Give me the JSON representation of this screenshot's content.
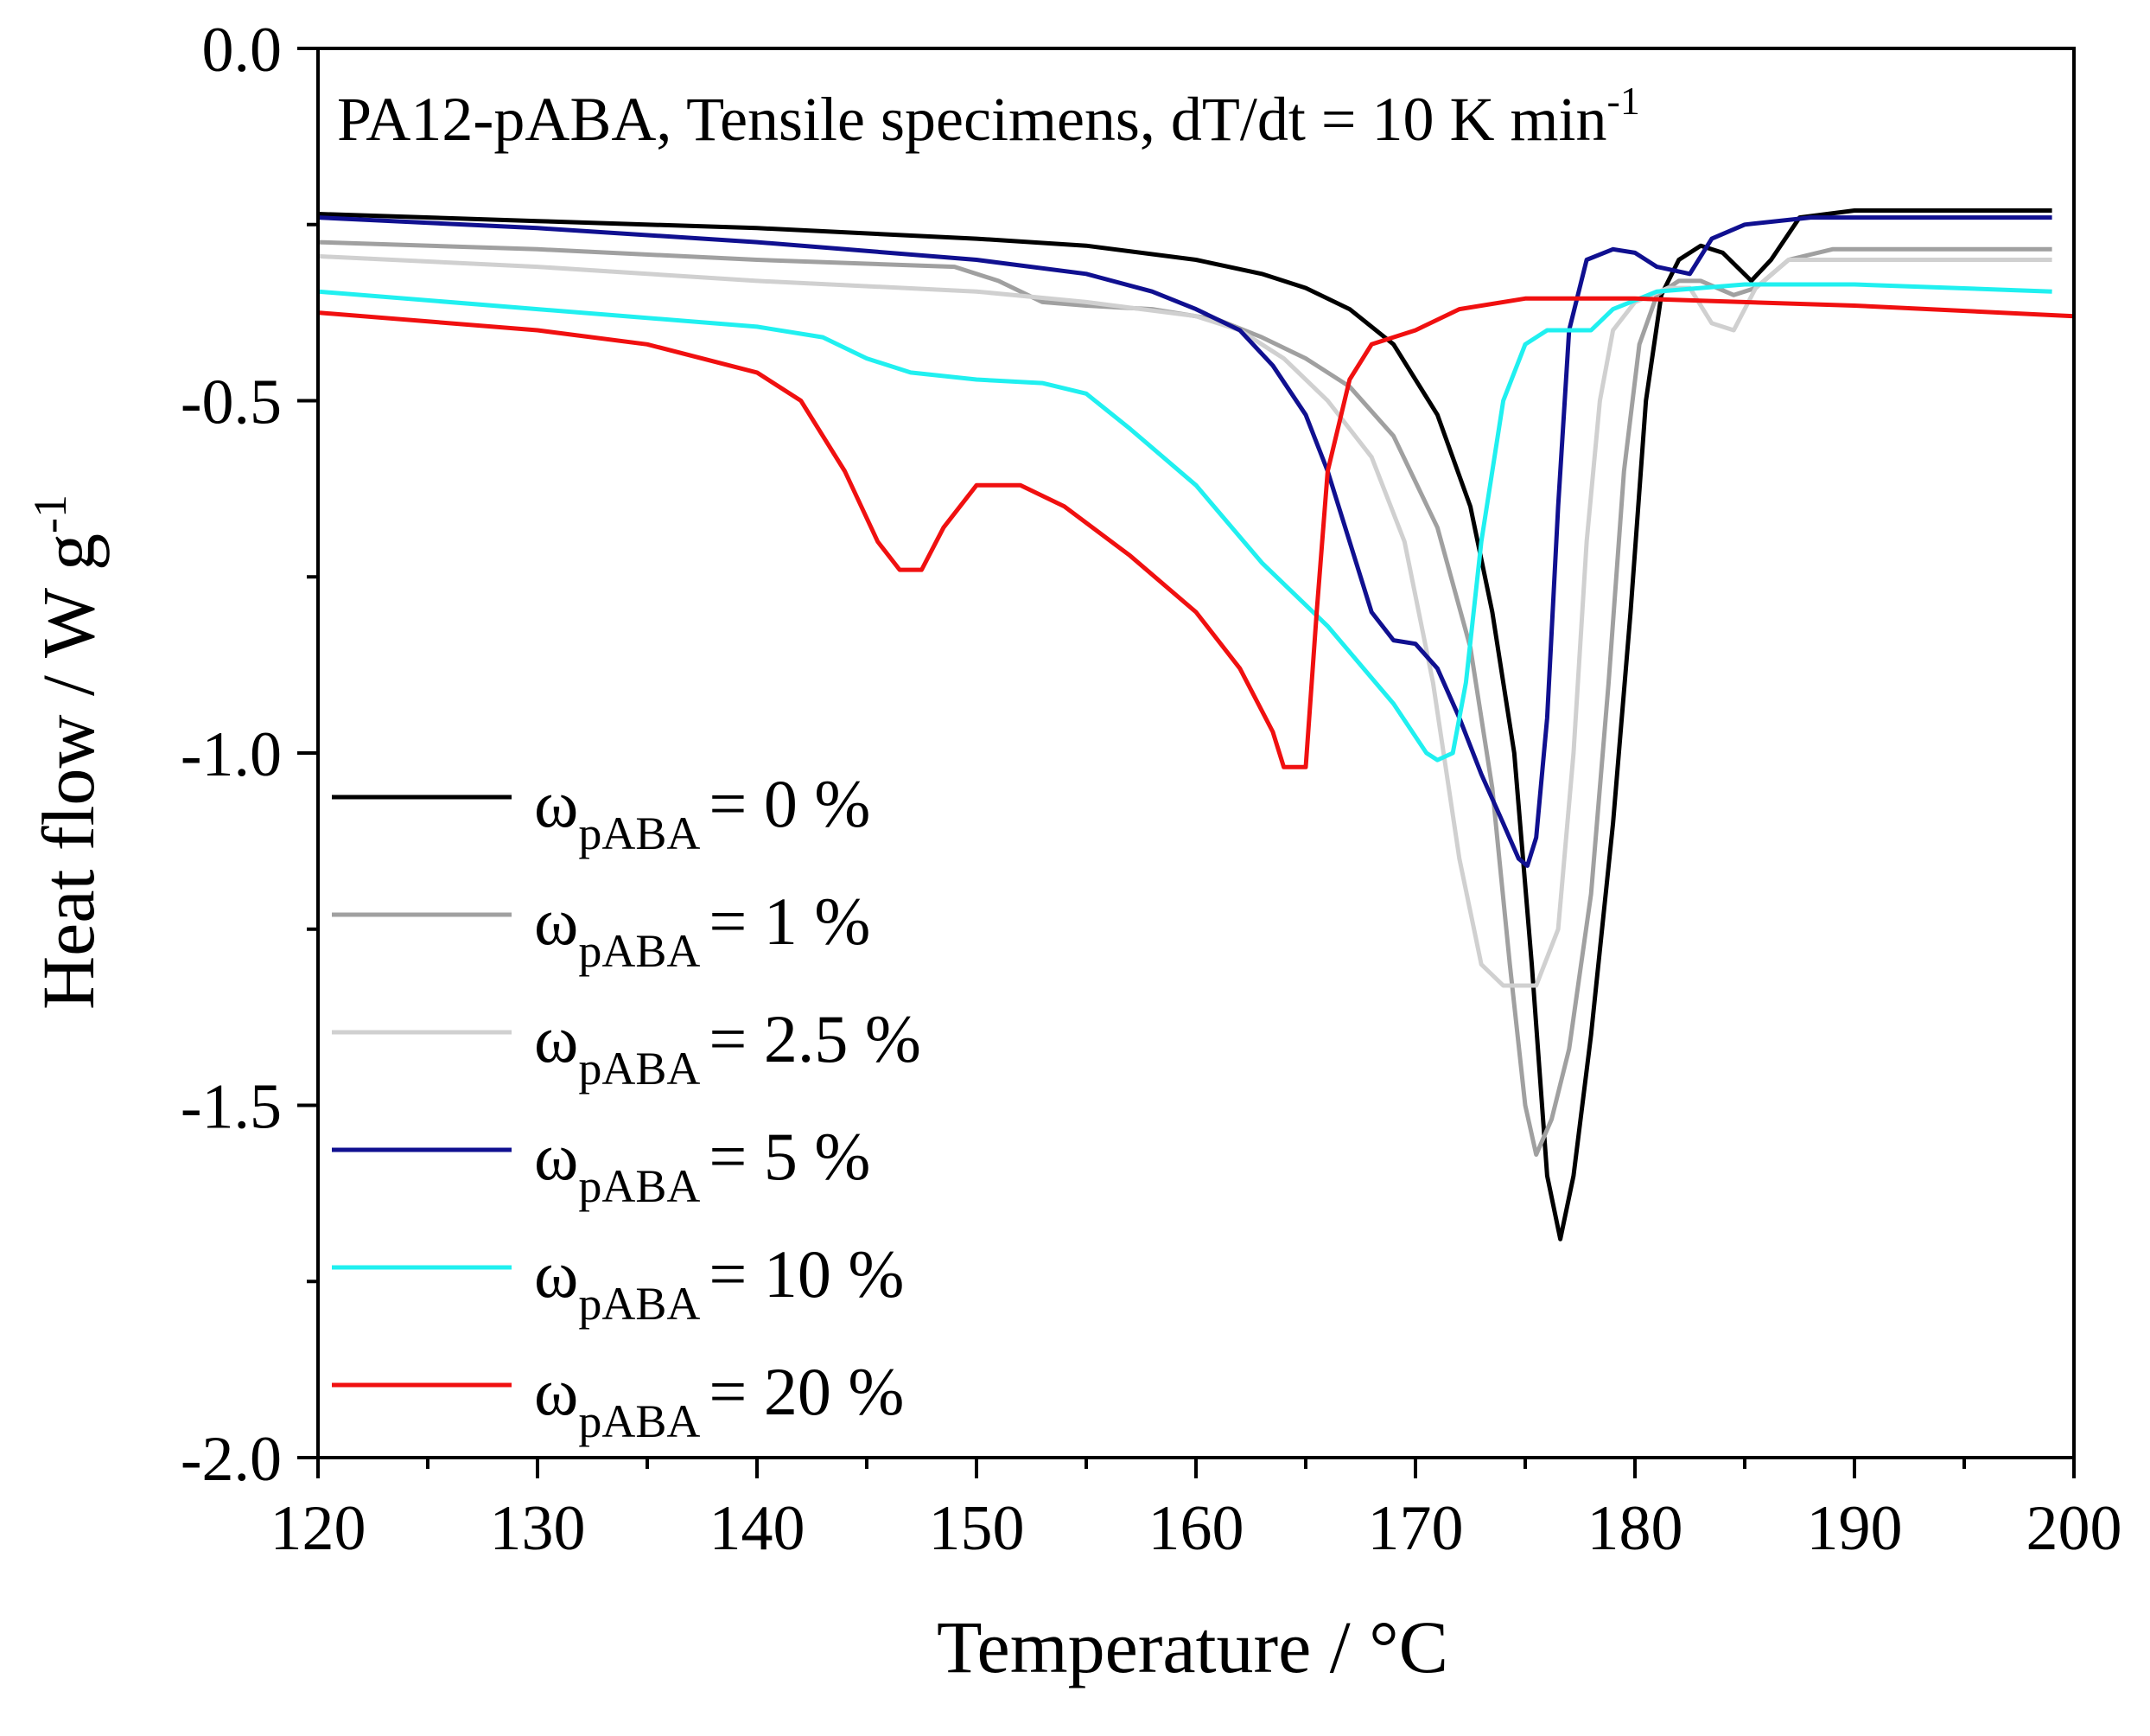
{
  "chart_data": {
    "type": "line",
    "title": "PA12-pABA, Tensile specimens, dT/dt = 10 K min",
    "title_superscript": "-1",
    "xlabel": "Temperature / °C",
    "ylabel": "Heat flow / W g",
    "ylabel_superscript": "-1",
    "xlim": [
      120,
      200
    ],
    "ylim": [
      -2.0,
      0.0
    ],
    "x_ticks": [
      120,
      130,
      140,
      150,
      160,
      170,
      180,
      190,
      200
    ],
    "x_tick_labels": [
      "120",
      "130",
      "140",
      "150",
      "160",
      "170",
      "180",
      "190",
      "200"
    ],
    "y_ticks": [
      0.0,
      -0.5,
      -1.0,
      -1.5,
      -2.0
    ],
    "y_tick_labels": [
      "0.0",
      "-0.5",
      "-1.0",
      "-1.5",
      "-2.0"
    ],
    "legend_position": "lower-left",
    "legend_symbol": "ω",
    "legend_subscript": "pABA",
    "series": [
      {
        "name": "ω pABA = 0 %",
        "legend_value": "= 0 %",
        "color": "#000000",
        "points": [
          [
            120,
            -0.235
          ],
          [
            130,
            -0.245
          ],
          [
            140,
            -0.255
          ],
          [
            150,
            -0.27
          ],
          [
            155,
            -0.28
          ],
          [
            160,
            -0.3
          ],
          [
            163,
            -0.32
          ],
          [
            165,
            -0.34
          ],
          [
            167,
            -0.37
          ],
          [
            169,
            -0.42
          ],
          [
            171,
            -0.52
          ],
          [
            172.5,
            -0.65
          ],
          [
            173.5,
            -0.8
          ],
          [
            174.5,
            -1.0
          ],
          [
            175.3,
            -1.3
          ],
          [
            176,
            -1.6
          ],
          [
            176.6,
            -1.69
          ],
          [
            177.2,
            -1.6
          ],
          [
            178,
            -1.4
          ],
          [
            179,
            -1.1
          ],
          [
            179.8,
            -0.8
          ],
          [
            180.5,
            -0.5
          ],
          [
            181.2,
            -0.35
          ],
          [
            182,
            -0.3
          ],
          [
            183,
            -0.28
          ],
          [
            184,
            -0.29
          ],
          [
            185.3,
            -0.33
          ],
          [
            186.2,
            -0.3
          ],
          [
            187.5,
            -0.24
          ],
          [
            190,
            -0.23
          ],
          [
            199,
            -0.23
          ]
        ]
      },
      {
        "name": "ω pABA = 1 %",
        "legend_value": "= 1 %",
        "color": "#a0a0a0",
        "points": [
          [
            120,
            -0.275
          ],
          [
            130,
            -0.285
          ],
          [
            140,
            -0.3
          ],
          [
            149,
            -0.31
          ],
          [
            151,
            -0.33
          ],
          [
            153,
            -0.36
          ],
          [
            155,
            -0.365
          ],
          [
            158,
            -0.37
          ],
          [
            161,
            -0.385
          ],
          [
            163,
            -0.41
          ],
          [
            165,
            -0.44
          ],
          [
            167,
            -0.48
          ],
          [
            169,
            -0.55
          ],
          [
            171,
            -0.68
          ],
          [
            172.5,
            -0.85
          ],
          [
            173.5,
            -1.05
          ],
          [
            174.3,
            -1.3
          ],
          [
            175,
            -1.5
          ],
          [
            175.5,
            -1.57
          ],
          [
            176.2,
            -1.52
          ],
          [
            177,
            -1.42
          ],
          [
            178,
            -1.2
          ],
          [
            178.8,
            -0.9
          ],
          [
            179.5,
            -0.6
          ],
          [
            180.2,
            -0.42
          ],
          [
            181,
            -0.35
          ],
          [
            182,
            -0.33
          ],
          [
            183,
            -0.33
          ],
          [
            184.5,
            -0.35
          ],
          [
            185.5,
            -0.34
          ],
          [
            187,
            -0.3
          ],
          [
            189,
            -0.285
          ],
          [
            199,
            -0.285
          ]
        ]
      },
      {
        "name": "ω pABA = 2.5 %",
        "legend_value": "= 2.5 %",
        "color": "#d0d0d0",
        "points": [
          [
            120,
            -0.295
          ],
          [
            130,
            -0.31
          ],
          [
            140,
            -0.33
          ],
          [
            150,
            -0.345
          ],
          [
            155,
            -0.36
          ],
          [
            160,
            -0.38
          ],
          [
            162,
            -0.4
          ],
          [
            164,
            -0.44
          ],
          [
            166,
            -0.5
          ],
          [
            168,
            -0.58
          ],
          [
            169.5,
            -0.7
          ],
          [
            170.8,
            -0.9
          ],
          [
            172,
            -1.15
          ],
          [
            173,
            -1.3
          ],
          [
            174,
            -1.33
          ],
          [
            175.5,
            -1.33
          ],
          [
            176.5,
            -1.25
          ],
          [
            177.2,
            -1.0
          ],
          [
            177.8,
            -0.7
          ],
          [
            178.4,
            -0.5
          ],
          [
            179,
            -0.4
          ],
          [
            180,
            -0.36
          ],
          [
            181.5,
            -0.34
          ],
          [
            182.5,
            -0.34
          ],
          [
            183.5,
            -0.39
          ],
          [
            184.5,
            -0.4
          ],
          [
            185.5,
            -0.34
          ],
          [
            187,
            -0.3
          ],
          [
            190,
            -0.3
          ],
          [
            199,
            -0.3
          ]
        ]
      },
      {
        "name": "ω pABA = 5 %",
        "legend_value": "= 5 %",
        "color": "#101090",
        "points": [
          [
            120,
            -0.24
          ],
          [
            130,
            -0.255
          ],
          [
            140,
            -0.275
          ],
          [
            150,
            -0.3
          ],
          [
            155,
            -0.32
          ],
          [
            158,
            -0.345
          ],
          [
            160,
            -0.37
          ],
          [
            162,
            -0.4
          ],
          [
            163.5,
            -0.45
          ],
          [
            165,
            -0.52
          ],
          [
            166,
            -0.6
          ],
          [
            167,
            -0.7
          ],
          [
            168,
            -0.8
          ],
          [
            169,
            -0.84
          ],
          [
            170,
            -0.845
          ],
          [
            171,
            -0.88
          ],
          [
            172,
            -0.95
          ],
          [
            173,
            -1.03
          ],
          [
            174,
            -1.1
          ],
          [
            174.7,
            -1.15
          ],
          [
            175.1,
            -1.16
          ],
          [
            175.5,
            -1.12
          ],
          [
            176,
            -0.95
          ],
          [
            176.5,
            -0.65
          ],
          [
            177,
            -0.4
          ],
          [
            177.8,
            -0.3
          ],
          [
            179,
            -0.285
          ],
          [
            180,
            -0.29
          ],
          [
            181,
            -0.31
          ],
          [
            182.5,
            -0.32
          ],
          [
            183.5,
            -0.27
          ],
          [
            185,
            -0.25
          ],
          [
            188,
            -0.24
          ],
          [
            199,
            -0.24
          ]
        ]
      },
      {
        "name": "ω pABA = 10 %",
        "legend_value": "= 10 %",
        "color": "#20f0f0",
        "points": [
          [
            120,
            -0.345
          ],
          [
            130,
            -0.37
          ],
          [
            140,
            -0.395
          ],
          [
            143,
            -0.41
          ],
          [
            145,
            -0.44
          ],
          [
            147,
            -0.46
          ],
          [
            150,
            -0.47
          ],
          [
            153,
            -0.475
          ],
          [
            155,
            -0.49
          ],
          [
            157,
            -0.54
          ],
          [
            160,
            -0.62
          ],
          [
            163,
            -0.73
          ],
          [
            166,
            -0.82
          ],
          [
            169,
            -0.93
          ],
          [
            170.5,
            -1.0
          ],
          [
            171,
            -1.01
          ],
          [
            171.7,
            -1.0
          ],
          [
            172.3,
            -0.9
          ],
          [
            173,
            -0.7
          ],
          [
            174,
            -0.5
          ],
          [
            175,
            -0.42
          ],
          [
            176,
            -0.4
          ],
          [
            178,
            -0.4
          ],
          [
            179,
            -0.37
          ],
          [
            181,
            -0.345
          ],
          [
            185,
            -0.335
          ],
          [
            190,
            -0.335
          ],
          [
            199,
            -0.345
          ]
        ]
      },
      {
        "name": "ω pABA = 20 %",
        "legend_value": "= 20 %",
        "color": "#f01010",
        "points": [
          [
            120,
            -0.375
          ],
          [
            130,
            -0.4
          ],
          [
            135,
            -0.42
          ],
          [
            140,
            -0.46
          ],
          [
            142,
            -0.5
          ],
          [
            144,
            -0.6
          ],
          [
            145.5,
            -0.7
          ],
          [
            146.5,
            -0.74
          ],
          [
            147.5,
            -0.74
          ],
          [
            148.5,
            -0.68
          ],
          [
            150,
            -0.62
          ],
          [
            152,
            -0.62
          ],
          [
            154,
            -0.65
          ],
          [
            157,
            -0.72
          ],
          [
            160,
            -0.8
          ],
          [
            162,
            -0.88
          ],
          [
            163.5,
            -0.97
          ],
          [
            164,
            -1.02
          ],
          [
            165,
            -1.02
          ],
          [
            165.5,
            -0.8
          ],
          [
            166,
            -0.6
          ],
          [
            167,
            -0.47
          ],
          [
            168,
            -0.42
          ],
          [
            170,
            -0.4
          ],
          [
            172,
            -0.37
          ],
          [
            175,
            -0.355
          ],
          [
            180,
            -0.355
          ],
          [
            190,
            -0.365
          ],
          [
            200,
            -0.38
          ]
        ]
      }
    ]
  }
}
